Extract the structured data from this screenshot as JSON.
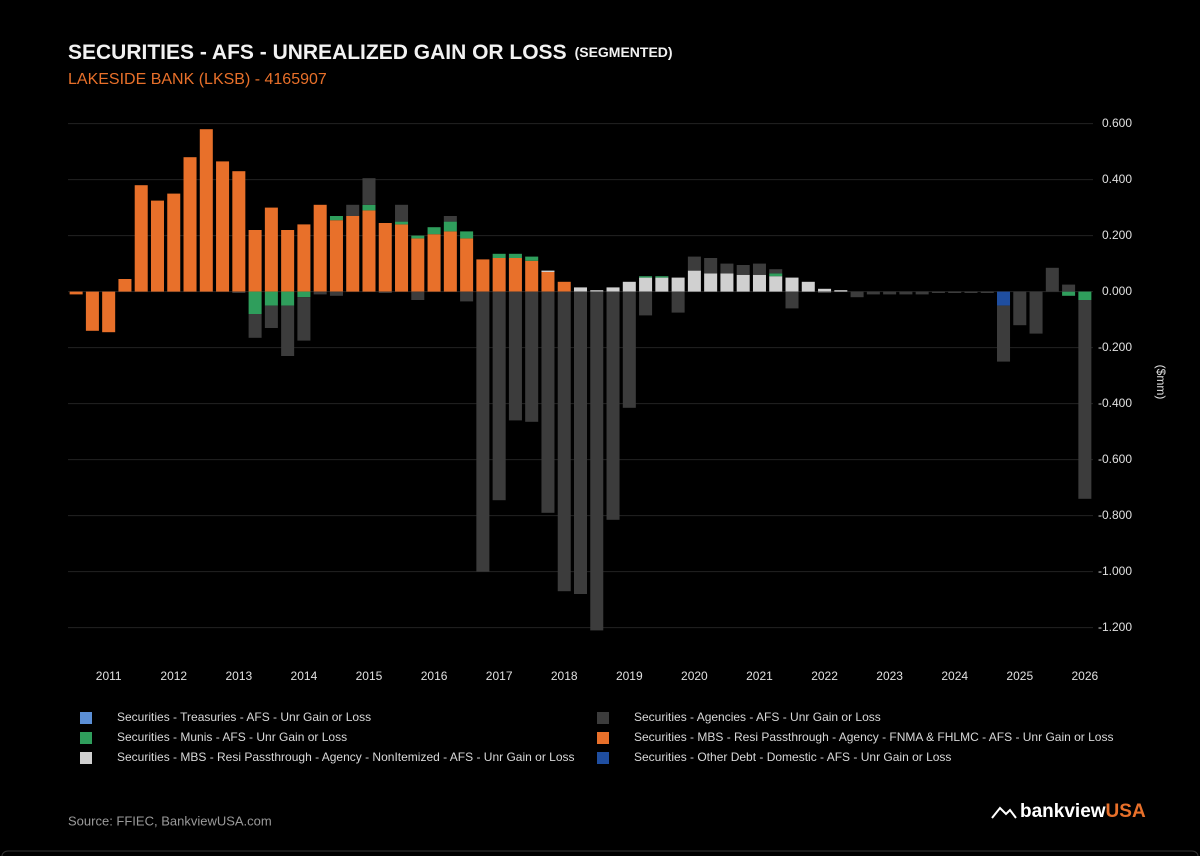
{
  "chart_data": {
    "type": "stacked_bar",
    "title": "SECURITIES - AFS - UNREALIZED GAIN OR LOSS",
    "title_suffix": "(SEGMENTED)",
    "subtitle": "LAKESIDE BANK (LKSB) - 4165907",
    "y_label": "($mm)",
    "source": "Source: FFIEC, BankviewUSA.com",
    "brand": {
      "name": "bankview",
      "suffix": "USA"
    },
    "categories": [
      null,
      null,
      "2011",
      null,
      null,
      null,
      "2012",
      null,
      null,
      null,
      "2013",
      null,
      null,
      null,
      "2014",
      null,
      null,
      null,
      "2015",
      null,
      null,
      null,
      "2016",
      null,
      null,
      null,
      "2017",
      null,
      null,
      null,
      "2018",
      null,
      null,
      null,
      "2019",
      null,
      null,
      null,
      "2020",
      null,
      null,
      null,
      "2021",
      null,
      null,
      null,
      "2022",
      null,
      null,
      null,
      "2023",
      null,
      null,
      null,
      "2024",
      null,
      null,
      null,
      "2025",
      null,
      null,
      null,
      "2026"
    ],
    "ylim": [
      -1.28,
      0.62
    ],
    "yticks": [
      {
        "value": 0.6,
        "label": "0.600"
      },
      {
        "value": 0.4,
        "label": "0.400"
      },
      {
        "value": 0.2,
        "label": "0.200"
      },
      {
        "value": 0,
        "label": "0.000"
      },
      {
        "value": -0.2,
        "label": "-0.200"
      },
      {
        "value": -0.4,
        "label": "-0.400"
      },
      {
        "value": -0.6,
        "label": "-0.600"
      },
      {
        "value": -0.8,
        "label": "-0.800"
      },
      {
        "value": -1.0,
        "label": "-1.000"
      },
      {
        "value": -1.2,
        "label": "-1.200"
      }
    ],
    "grid": true,
    "series": [
      {
        "name": "Securities - Treasuries - AFS - Unr Gain or Loss",
        "color": "#5b8fd6",
        "values": [
          0,
          0,
          0,
          0,
          0,
          0,
          0,
          0,
          0,
          0,
          0,
          0,
          0,
          0,
          0,
          0,
          0,
          0,
          0,
          0,
          0,
          0,
          0,
          0,
          0,
          0,
          0,
          0,
          0,
          0,
          0,
          0,
          0,
          0,
          0,
          0,
          0,
          0,
          0,
          0,
          0,
          0,
          0,
          0,
          0,
          0,
          0,
          0,
          0,
          0,
          0,
          0,
          0,
          0,
          0,
          0,
          0,
          0,
          0,
          0,
          0,
          0,
          0
        ]
      },
      {
        "name": "Securities - Agencies - AFS - Unr Gain or Loss",
        "color": "#3c3c3c",
        "values": [
          0,
          0,
          0,
          0,
          0,
          0,
          0,
          0,
          0,
          0,
          -0.005,
          -0.085,
          -0.08,
          -0.18,
          -0.155,
          -0.01,
          -0.015,
          0.04,
          0.095,
          -0.005,
          0.06,
          -0.03,
          0,
          0.02,
          -0.035,
          -1.0,
          -0.745,
          -0.46,
          -0.465,
          -0.79,
          -1.07,
          -1.08,
          -1.21,
          -0.815,
          -0.415,
          -0.085,
          0,
          -0.075,
          0.05,
          0.055,
          0.035,
          0.035,
          0.04,
          0.015,
          -0.06,
          0,
          -0.005,
          0,
          -0.02,
          -0.01,
          -0.01,
          -0.01,
          -0.01,
          -0.005,
          -0.005,
          -0.005,
          -0.005,
          -0.2,
          -0.12,
          -0.15,
          0.085,
          0.025,
          -0.71
        ]
      },
      {
        "name": "Securities - Munis - AFS - Unr Gain or Loss",
        "color": "#2f9e5c",
        "values": [
          0,
          0,
          0,
          0,
          0,
          0,
          0,
          0,
          0,
          0,
          0,
          -0.08,
          -0.05,
          -0.05,
          -0.02,
          0,
          0.015,
          0,
          0.02,
          0,
          0.01,
          0.01,
          0.025,
          0.035,
          0.025,
          0,
          0.015,
          0.015,
          0.015,
          0,
          0,
          0,
          0,
          0,
          0,
          0.005,
          0.005,
          0,
          0,
          0,
          0,
          0,
          0,
          0.01,
          0,
          0,
          0,
          0,
          0,
          0,
          0,
          0,
          0,
          0,
          0,
          0,
          0,
          0,
          0,
          0,
          0,
          -0.015,
          -0.03
        ]
      },
      {
        "name": "Securities - MBS - Resi Passthrough - Agency - FNMA & FHLMC - AFS - Unr Gain or Loss",
        "color": "#e8702a",
        "values": [
          -0.01,
          -0.14,
          -0.145,
          0.045,
          0.38,
          0.325,
          0.35,
          0.48,
          0.58,
          0.465,
          0.43,
          0.22,
          0.3,
          0.22,
          0.24,
          0.31,
          0.255,
          0.27,
          0.29,
          0.245,
          0.24,
          0.19,
          0.205,
          0.215,
          0.19,
          0.115,
          0.12,
          0.12,
          0.11,
          0.07,
          0.035,
          0,
          0,
          0,
          0,
          0,
          0,
          0,
          0,
          0,
          0,
          0,
          0,
          0,
          0,
          0,
          0,
          0,
          0,
          0,
          0,
          0,
          0,
          0,
          0,
          0,
          0,
          0,
          0,
          0,
          0,
          0,
          0
        ]
      },
      {
        "name": "Securities - MBS - Resi Passthrough - Agency - NonItemized - AFS - Unr Gain or Loss",
        "color": "#d0d0d0",
        "values": [
          0,
          0,
          0,
          0,
          0,
          0,
          0,
          0,
          0,
          0,
          0,
          0,
          0,
          0,
          0,
          0,
          0,
          0,
          0,
          0,
          0,
          0,
          0,
          0,
          0,
          0,
          0,
          0,
          0,
          0.005,
          0,
          0.015,
          0.005,
          0.015,
          0.035,
          0.05,
          0.05,
          0.05,
          0.075,
          0.065,
          0.065,
          0.06,
          0.06,
          0.055,
          0.05,
          0.035,
          0.01,
          0.005,
          0,
          0,
          0,
          0,
          0,
          0,
          0,
          0,
          0,
          0,
          0,
          0,
          0,
          0,
          0
        ]
      },
      {
        "name": "Securities - Other Debt - Domestic - AFS - Unr Gain or Loss",
        "color": "#1f4ea0",
        "values": [
          0,
          0,
          0,
          0,
          0,
          0,
          0,
          0,
          0,
          0,
          0,
          0,
          0,
          0,
          0,
          0,
          0,
          0,
          0,
          0,
          0,
          0,
          0,
          0,
          0,
          0,
          0,
          0,
          0,
          0,
          0,
          0,
          0,
          0,
          0,
          0,
          0,
          0,
          0,
          0,
          0,
          0,
          0,
          0,
          0,
          0,
          0,
          0,
          0,
          0,
          0,
          0,
          0,
          0,
          0,
          0,
          0,
          -0.05,
          0,
          0,
          0,
          0,
          0
        ]
      }
    ]
  }
}
